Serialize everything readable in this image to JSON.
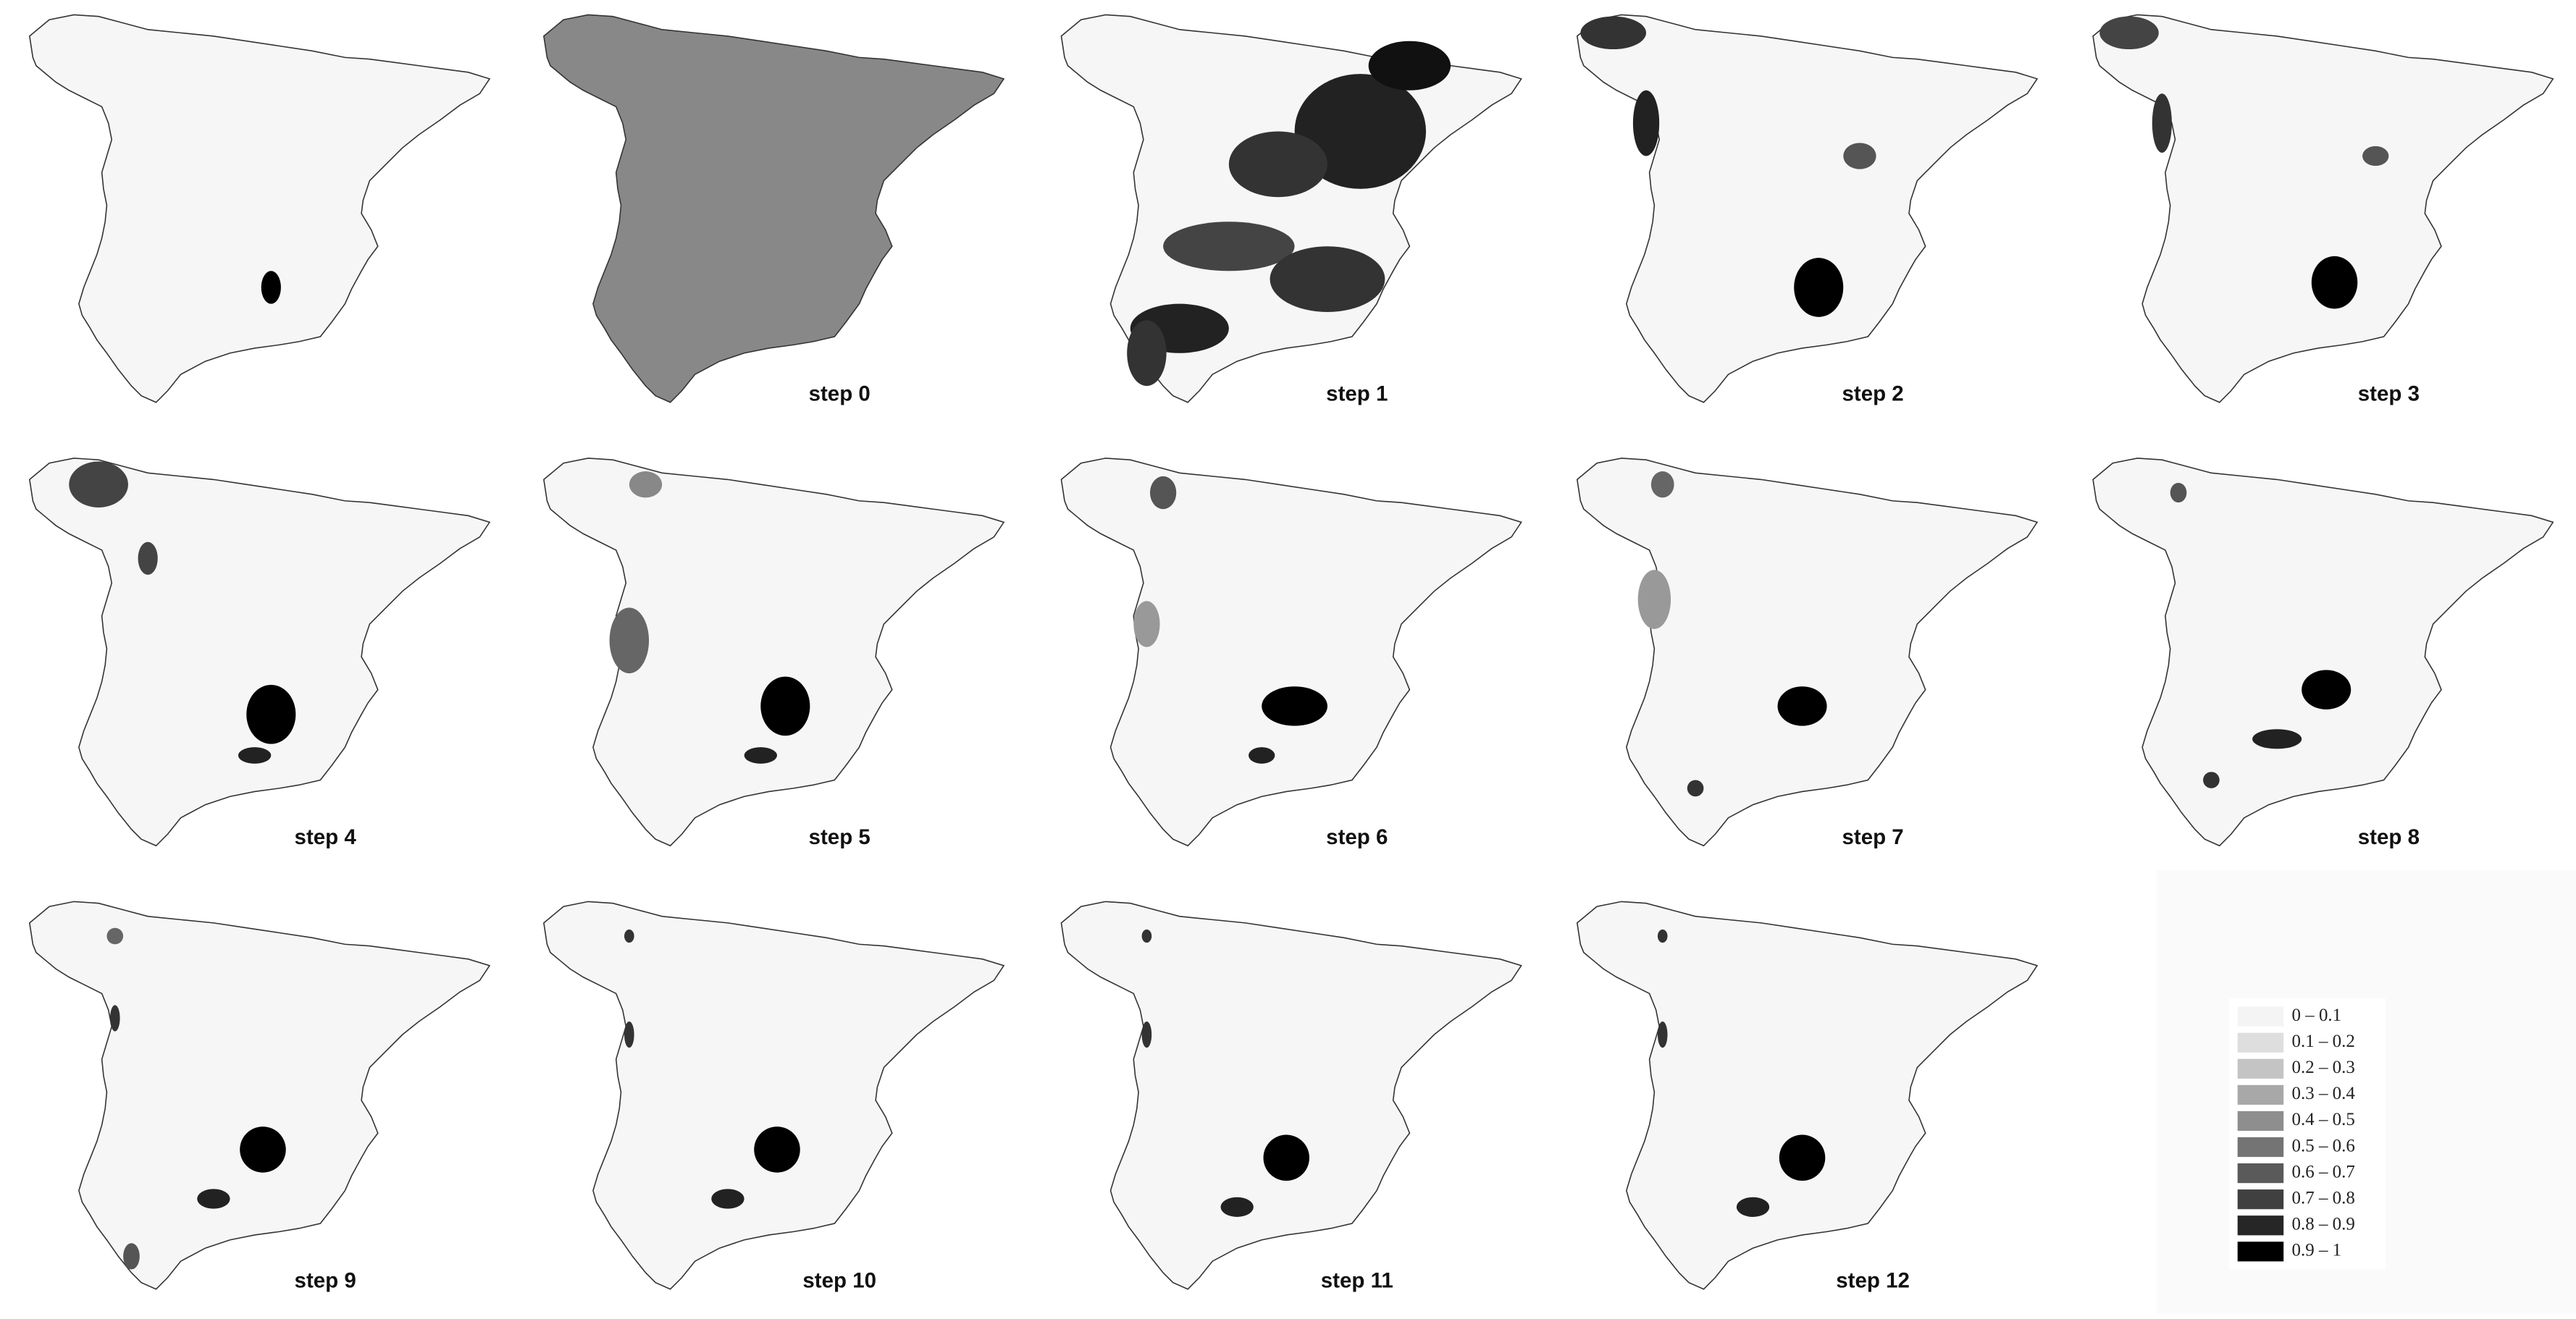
{
  "panels": [
    {
      "label": "step 0"
    },
    {
      "label": "step 1"
    },
    {
      "label": "step 2"
    },
    {
      "label": "step 3"
    },
    {
      "label": "step 4"
    },
    {
      "label": "step 5"
    },
    {
      "label": "step 6"
    },
    {
      "label": "step 7"
    },
    {
      "label": "step 8"
    },
    {
      "label": "step 9"
    },
    {
      "label": "step 10"
    },
    {
      "label": "step 11"
    },
    {
      "label": "step 12"
    }
  ],
  "legend": {
    "items": [
      {
        "label": "0 – 0.1",
        "color": "#f4f4f4"
      },
      {
        "label": "0.1 – 0.2",
        "color": "#dedede"
      },
      {
        "label": "0.2 – 0.3",
        "color": "#c4c4c4"
      },
      {
        "label": "0.3 – 0.4",
        "color": "#a8a8a8"
      },
      {
        "label": "0.4 – 0.5",
        "color": "#8e8e8e"
      },
      {
        "label": "0.5 – 0.6",
        "color": "#747474"
      },
      {
        "label": "0.6 – 0.7",
        "color": "#5a5a5a"
      },
      {
        "label": "0.7 – 0.8",
        "color": "#404040"
      },
      {
        "label": "0.8 – 0.9",
        "color": "#262626"
      },
      {
        "label": "0.9 – 1",
        "color": "#000000"
      }
    ]
  }
}
